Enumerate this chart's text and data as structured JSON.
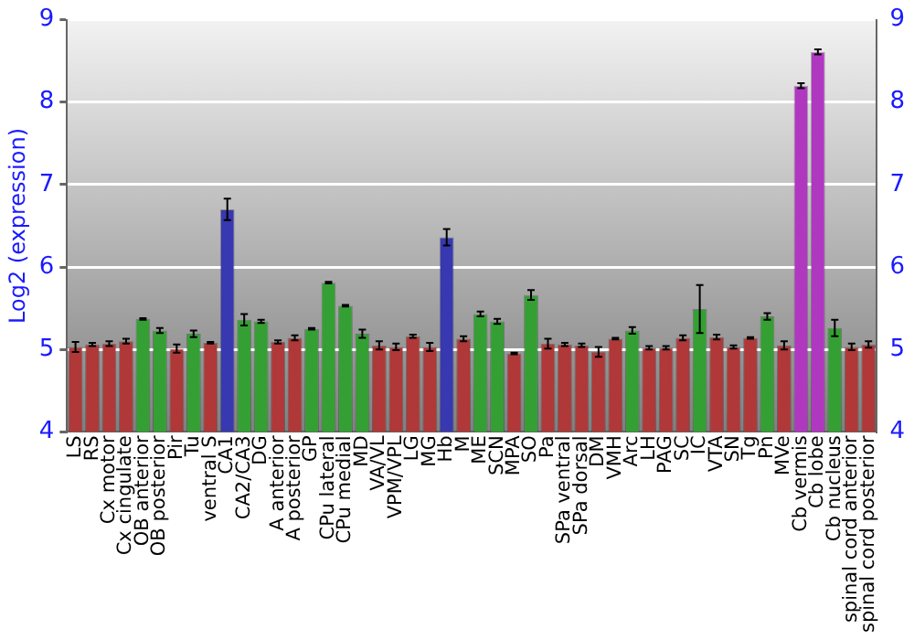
{
  "chart_data": {
    "type": "bar",
    "ylabel": "Log2 (expression)",
    "categories": [
      "LS",
      "RS",
      "Cx motor",
      "Cx cingulate",
      "OB anterior",
      "OB posterior",
      "Pir",
      "Tu",
      "ventral S",
      "CA1",
      "CA2/CA3",
      "DG",
      "A anterior",
      "A posterior",
      "GP",
      "CPu lateral",
      "CPu medial",
      "MD",
      "VA/VL",
      "VPM/VPL",
      "LG",
      "MG",
      "Hb",
      "M",
      "ME",
      "SCN",
      "MPA",
      "SO",
      "Pa",
      "SPa ventral",
      "SPa dorsal",
      "DM",
      "VMH",
      "Arc",
      "LH",
      "PAG",
      "SC",
      "IC",
      "VTA",
      "SN",
      "Tg",
      "Pn",
      "MVe",
      "Cb vermis",
      "Cb lobe",
      "Cb nucleus",
      "spinal cord anterior",
      "spinal cord posterior"
    ],
    "values": [
      5.03,
      5.06,
      5.07,
      5.1,
      5.37,
      5.23,
      5.01,
      5.19,
      5.08,
      6.7,
      5.36,
      5.34,
      5.09,
      5.14,
      5.25,
      5.81,
      5.53,
      5.19,
      5.05,
      5.03,
      5.16,
      5.03,
      6.36,
      5.13,
      5.43,
      5.34,
      4.95,
      5.66,
      5.07,
      5.06,
      5.05,
      4.97,
      5.13,
      5.23,
      5.02,
      5.02,
      5.14,
      5.49,
      5.15,
      5.03,
      5.14,
      5.4,
      5.05,
      8.2,
      8.61,
      5.26,
      5.03,
      5.06
    ],
    "errors": [
      0.06,
      0.02,
      0.03,
      0.03,
      0.01,
      0.03,
      0.05,
      0.04,
      0.01,
      0.13,
      0.07,
      0.02,
      0.02,
      0.03,
      0.01,
      0.01,
      0.01,
      0.05,
      0.05,
      0.04,
      0.02,
      0.05,
      0.1,
      0.03,
      0.03,
      0.03,
      0.01,
      0.06,
      0.06,
      0.02,
      0.02,
      0.06,
      0.01,
      0.04,
      0.02,
      0.02,
      0.03,
      0.29,
      0.03,
      0.02,
      0.01,
      0.04,
      0.05,
      0.03,
      0.03,
      0.1,
      0.04,
      0.04
    ],
    "colors": [
      "#b03838",
      "#b03838",
      "#b03838",
      "#b03838",
      "#34a034",
      "#34a034",
      "#b03838",
      "#34a034",
      "#b03838",
      "#3838b0",
      "#34a034",
      "#34a034",
      "#b03838",
      "#b03838",
      "#34a034",
      "#34a034",
      "#34a034",
      "#34a034",
      "#b03838",
      "#b03838",
      "#b03838",
      "#b03838",
      "#3838b0",
      "#b03838",
      "#34a034",
      "#34a034",
      "#b03838",
      "#34a034",
      "#b03838",
      "#b03838",
      "#b03838",
      "#b03838",
      "#b03838",
      "#34a034",
      "#b03838",
      "#b03838",
      "#b03838",
      "#34a034",
      "#b03838",
      "#b03838",
      "#b03838",
      "#34a034",
      "#b03838",
      "#b038c0",
      "#b038c0",
      "#34a034",
      "#b03838",
      "#b03838"
    ],
    "ylim": [
      4,
      9
    ],
    "yticks": [
      4,
      5,
      6,
      7,
      8,
      9
    ],
    "y2lim": [
      4,
      9
    ],
    "y2ticks": [
      4,
      5,
      6,
      7,
      8,
      9
    ],
    "grid": "y"
  }
}
